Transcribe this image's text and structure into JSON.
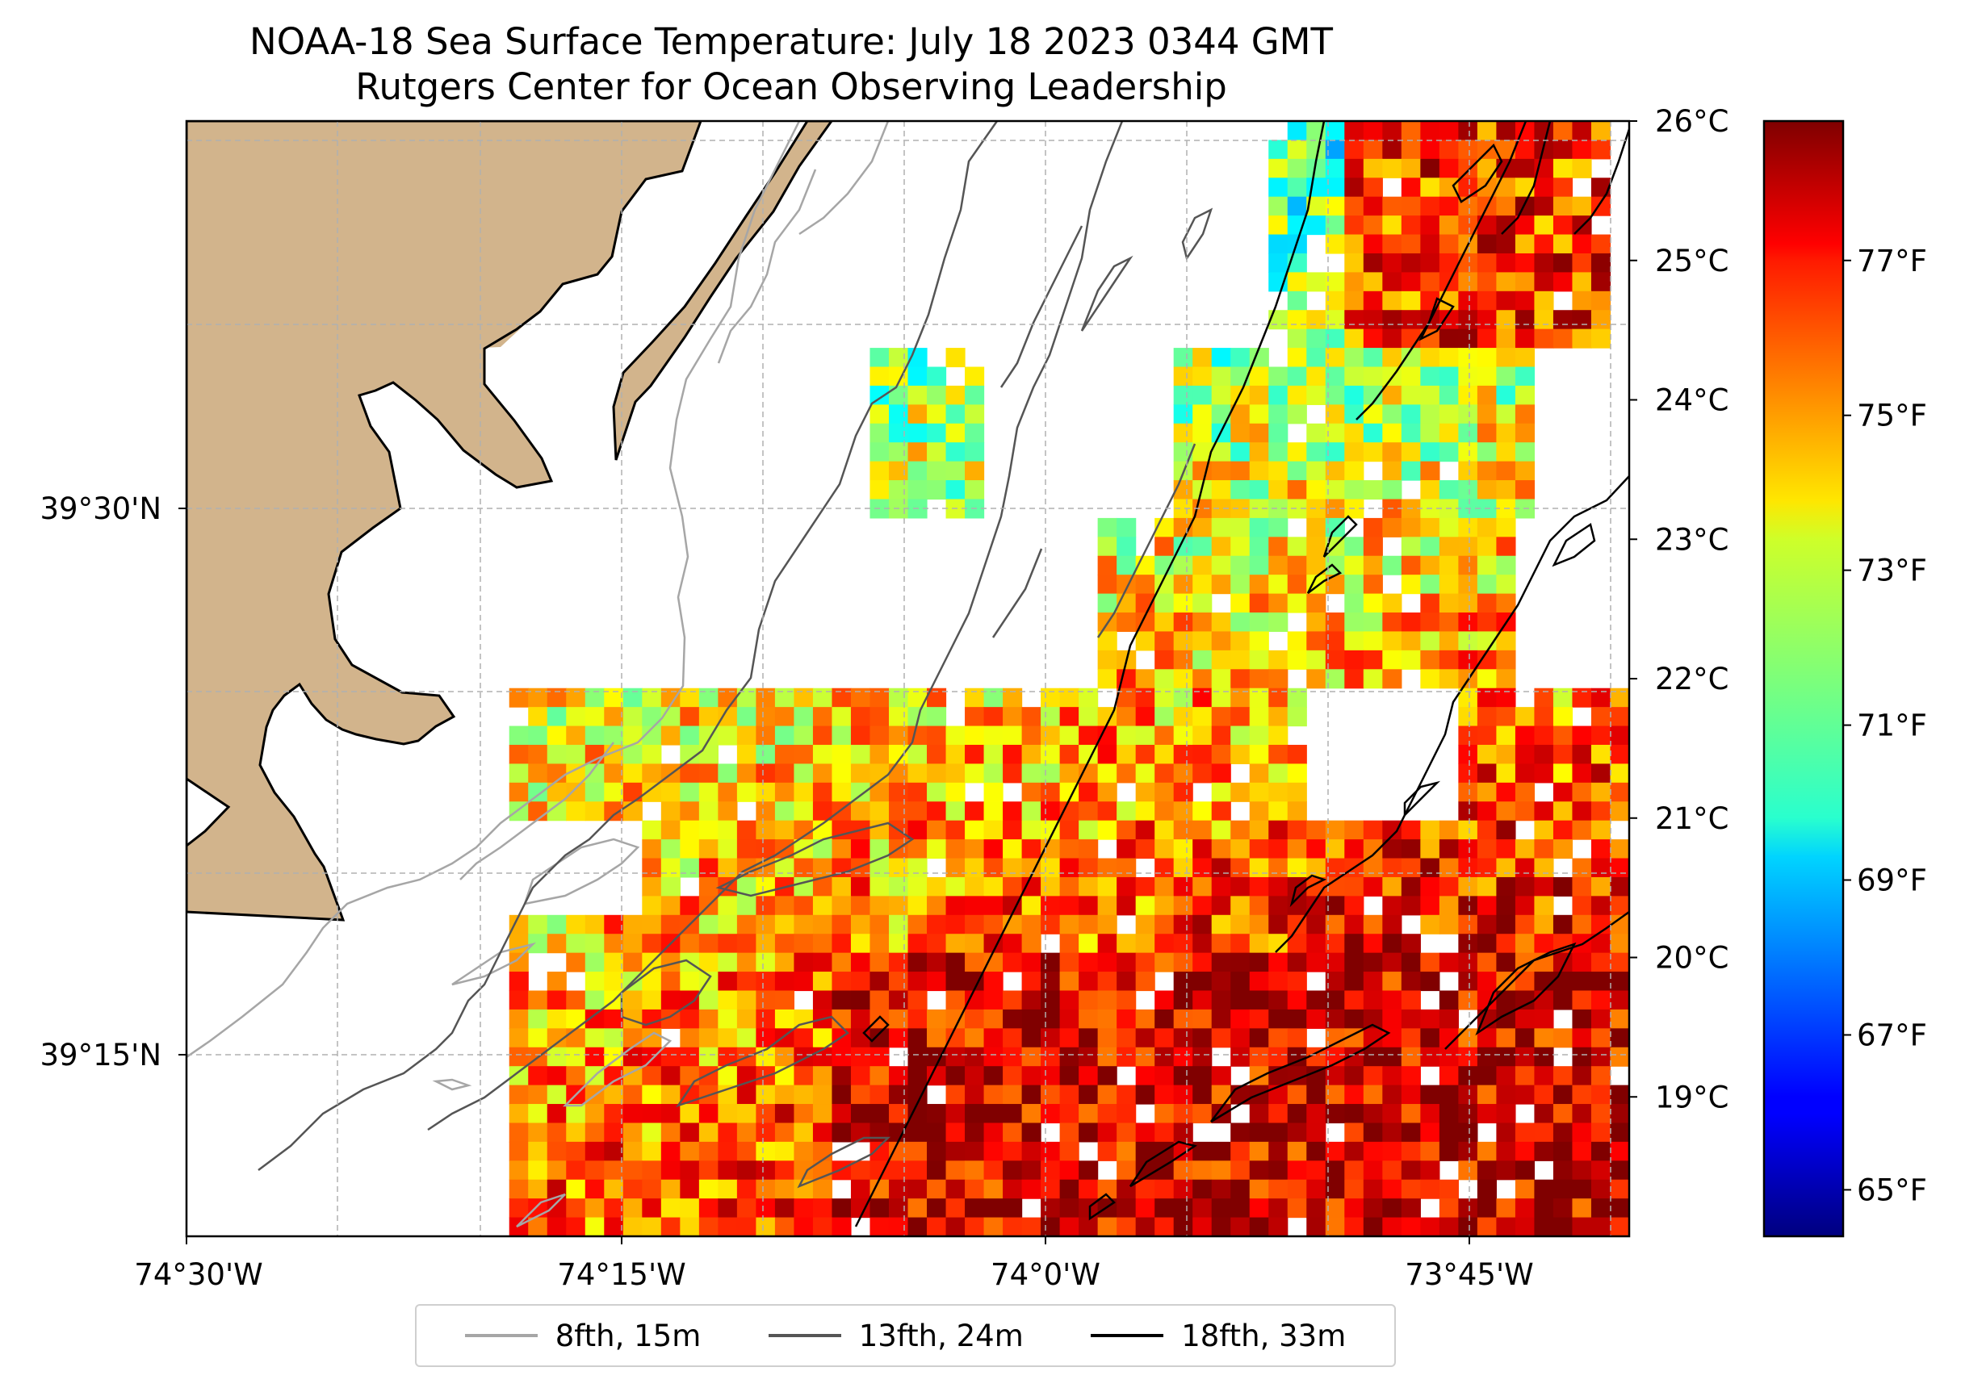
{
  "title": {
    "line1": "NOAA-18 Sea Surface Temperature: July 18 2023 0344 GMT",
    "line2": "Rutgers Center for Ocean Observing Leadership"
  },
  "map": {
    "lon_labels": [
      "74°30'W",
      "74°15'W",
      "74°0'W",
      "73°45'W"
    ],
    "lat_labels": [
      "39°30'N",
      "39°15'N"
    ],
    "land_color": "#d2b48c"
  },
  "colorbar": {
    "colormap": "jet",
    "celsius_range": [
      18.0,
      26.0
    ],
    "celsius_labels": [
      "26°C",
      "25°C",
      "24°C",
      "23°C",
      "22°C",
      "21°C",
      "20°C",
      "19°C"
    ],
    "fahrenheit_labels": [
      "77°F",
      "75°F",
      "73°F",
      "71°F",
      "69°F",
      "67°F",
      "65°F"
    ]
  },
  "legend": {
    "items": [
      {
        "label": "8fth, 15m",
        "color": "#a6a6a6"
      },
      {
        "label": "13fth, 24m",
        "color": "#555555"
      },
      {
        "label": "18fth, 33m",
        "color": "#000000"
      }
    ]
  }
}
